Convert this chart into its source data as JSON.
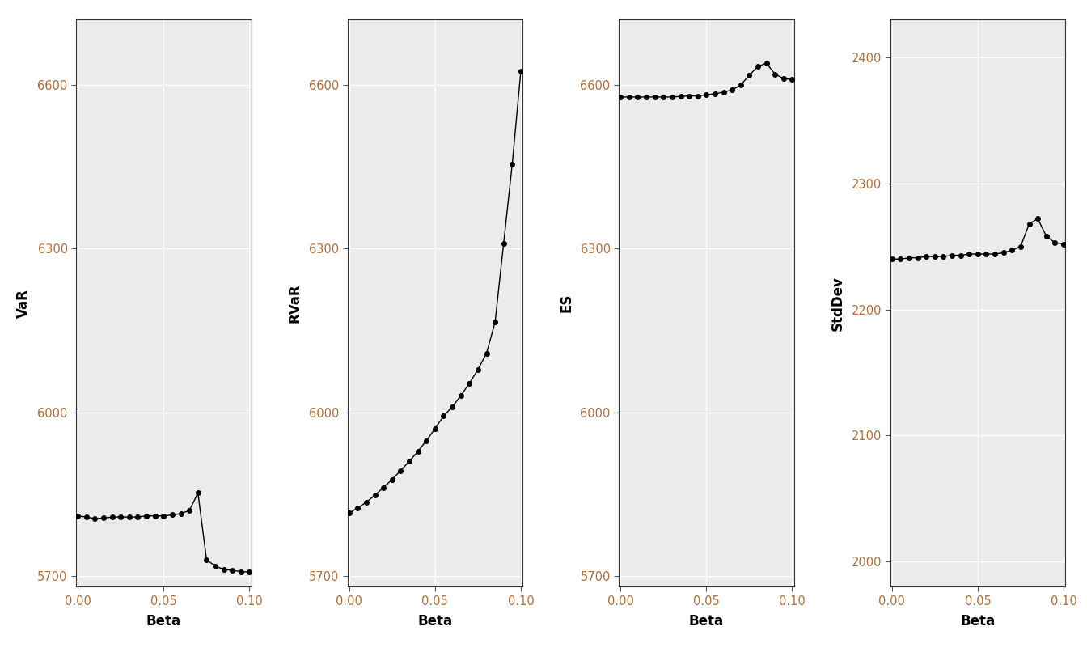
{
  "beta": [
    0.0,
    0.005,
    0.01,
    0.015,
    0.02,
    0.025,
    0.03,
    0.035,
    0.04,
    0.045,
    0.05,
    0.055,
    0.06,
    0.065,
    0.07,
    0.075,
    0.08,
    0.085,
    0.09,
    0.095,
    0.1
  ],
  "VaR": [
    5810,
    5808,
    5805,
    5806,
    5808,
    5808,
    5808,
    5808,
    5810,
    5810,
    5810,
    5812,
    5814,
    5820,
    5852,
    5730,
    5718,
    5712,
    5710,
    5708,
    5707
  ],
  "RVaR": [
    5815,
    5825,
    5835,
    5848,
    5862,
    5877,
    5893,
    5910,
    5928,
    5948,
    5970,
    5993,
    6010,
    6030,
    6053,
    6078,
    6108,
    6165,
    6310,
    6455,
    6625
  ],
  "ES": [
    6578,
    6578,
    6578,
    6578,
    6578,
    6578,
    6578,
    6579,
    6580,
    6580,
    6582,
    6584,
    6587,
    6591,
    6600,
    6618,
    6634,
    6640,
    6620,
    6612,
    6610
  ],
  "StdDev": [
    2240,
    2240,
    2241,
    2241,
    2242,
    2242,
    2242,
    2243,
    2243,
    2244,
    2244,
    2244,
    2244,
    2245,
    2247,
    2250,
    2268,
    2272,
    2258,
    2253,
    2252
  ],
  "xlim": [
    -0.001,
    0.101
  ],
  "xticks": [
    0.0,
    0.05,
    0.1
  ],
  "VaR_ylim": [
    5680,
    6720
  ],
  "VaR_yticks": [
    5700,
    6000,
    6300,
    6600
  ],
  "RVaR_ylim": [
    5680,
    6720
  ],
  "RVaR_yticks": [
    5700,
    6000,
    6300,
    6600
  ],
  "ES_ylim": [
    5680,
    6720
  ],
  "ES_yticks": [
    5700,
    6000,
    6300,
    6600
  ],
  "StdDev_ylim": [
    1980,
    2430
  ],
  "StdDev_yticks": [
    2000,
    2100,
    2200,
    2300,
    2400
  ],
  "xlabel": "Beta",
  "ylabels": [
    "VaR",
    "RVaR",
    "ES",
    "StdDev"
  ],
  "line_color": "#000000",
  "marker": "o",
  "markersize": 4,
  "linewidth": 1.0,
  "bg_color": "#ebebeb",
  "grid_color": "#ffffff",
  "tick_label_color": "#b07040",
  "axis_label_color": "#000000",
  "spine_color": "#333333"
}
